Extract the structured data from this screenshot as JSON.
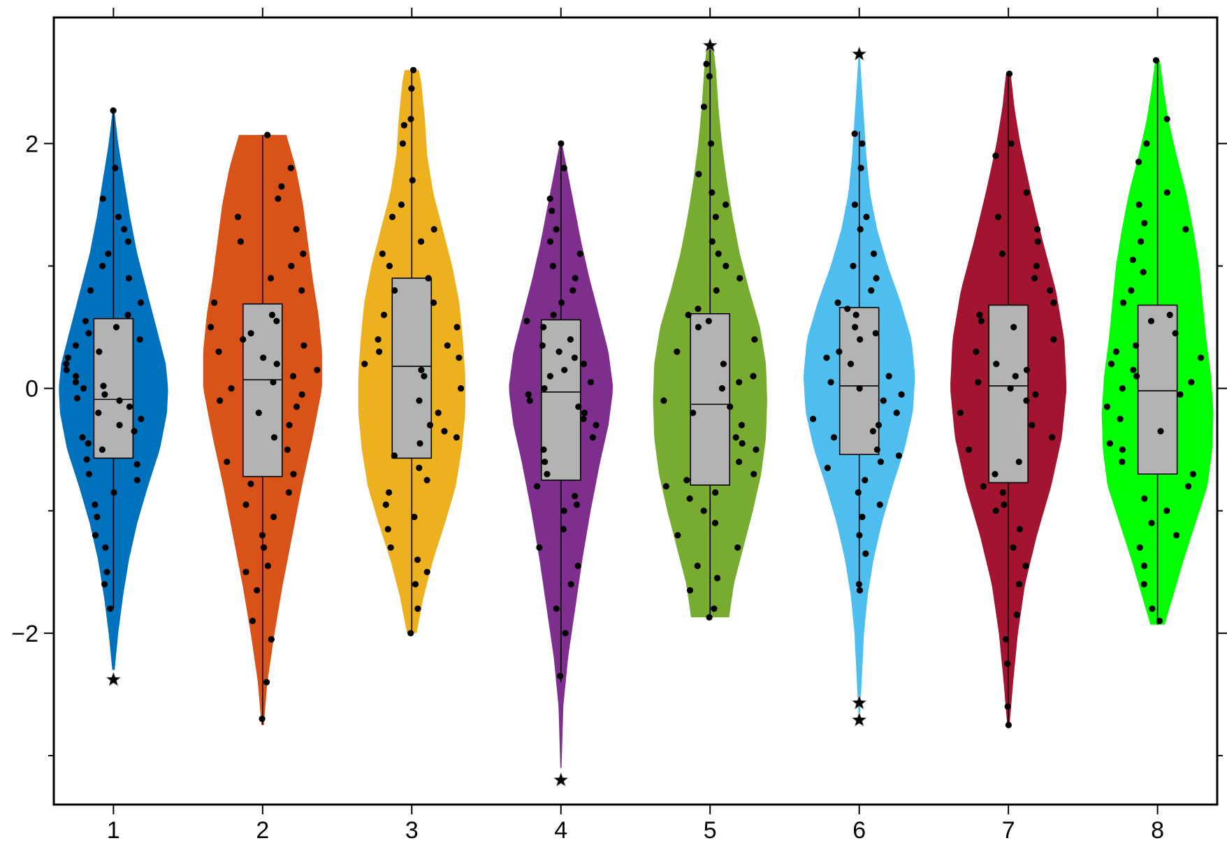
{
  "chart_data": {
    "type": "violin",
    "title": "",
    "xlabel": "",
    "ylabel": "",
    "categories": [
      "1",
      "2",
      "3",
      "4",
      "5",
      "6",
      "7",
      "8"
    ],
    "x_ticks": [
      "1",
      "2",
      "3",
      "4",
      "5",
      "6",
      "7",
      "8"
    ],
    "y_ticks": [
      {
        "value": -2,
        "label": "−2"
      },
      {
        "value": 0,
        "label": "0"
      },
      {
        "value": 2,
        "label": "2"
      }
    ],
    "y_minor_ticks": [
      -3,
      -1,
      1
    ],
    "xlim": [
      0.6,
      8.4
    ],
    "ylim": [
      -3.4,
      3.03
    ],
    "grid": false,
    "legend": "none",
    "colors": [
      "#0072BD",
      "#D95319",
      "#EDB120",
      "#7E2F8E",
      "#77AC30",
      "#4DBEEE",
      "#A2142F",
      "#00FF00"
    ],
    "box_color": "#B3B3B3",
    "point_color": "#000000",
    "series": [
      {
        "category": "1",
        "color": "#0072BD",
        "box": {
          "q1": -0.57,
          "median": -0.09,
          "q3": 0.57,
          "whisker_low": -1.8,
          "whisker_high": 2.27
        },
        "outliers": [
          -2.38
        ],
        "density": {
          "y": [
            -2.3,
            -2.0,
            -1.7,
            -1.4,
            -1.1,
            -0.8,
            -0.5,
            -0.2,
            0.0,
            0.2,
            0.5,
            0.8,
            1.1,
            1.4,
            1.7,
            2.0,
            2.25
          ],
          "w": [
            0.01,
            0.04,
            0.08,
            0.13,
            0.2,
            0.29,
            0.39,
            0.45,
            0.46,
            0.44,
            0.36,
            0.28,
            0.2,
            0.14,
            0.09,
            0.04,
            0.01
          ]
        },
        "points": [
          -1.8,
          -1.6,
          -1.5,
          -1.3,
          -1.2,
          -1.05,
          -0.95,
          -0.85,
          -0.75,
          -0.7,
          -0.62,
          -0.58,
          -0.5,
          -0.45,
          -0.4,
          -0.35,
          -0.3,
          -0.25,
          -0.2,
          -0.15,
          -0.1,
          -0.08,
          -0.05,
          0.0,
          0.02,
          0.05,
          0.1,
          0.15,
          0.2,
          0.25,
          0.3,
          0.35,
          0.4,
          0.45,
          0.5,
          0.55,
          0.6,
          0.7,
          0.8,
          0.9,
          1.0,
          1.1,
          1.2,
          1.3,
          1.4,
          1.55,
          1.8,
          2.27
        ]
      },
      {
        "category": "2",
        "color": "#D95319",
        "box": {
          "q1": -0.72,
          "median": 0.07,
          "q3": 0.69,
          "whisker_low": -2.75,
          "whisker_high": 2.07
        },
        "outliers": [],
        "density": {
          "y": [
            -2.75,
            -2.4,
            -2.0,
            -1.6,
            -1.2,
            -0.8,
            -0.4,
            0.0,
            0.3,
            0.6,
            0.9,
            1.2,
            1.5,
            1.8,
            2.07
          ],
          "w": [
            0.01,
            0.04,
            0.1,
            0.17,
            0.25,
            0.33,
            0.42,
            0.5,
            0.5,
            0.47,
            0.42,
            0.38,
            0.34,
            0.28,
            0.2
          ]
        },
        "points": [
          -2.7,
          -2.4,
          -2.05,
          -1.9,
          -1.65,
          -1.5,
          -1.45,
          -1.3,
          -1.2,
          -1.05,
          -0.95,
          -0.85,
          -0.78,
          -0.7,
          -0.6,
          -0.5,
          -0.4,
          -0.3,
          -0.2,
          -0.15,
          -0.1,
          -0.05,
          0.0,
          0.05,
          0.1,
          0.15,
          0.2,
          0.25,
          0.3,
          0.35,
          0.4,
          0.45,
          0.5,
          0.55,
          0.6,
          0.7,
          0.8,
          0.9,
          1.0,
          1.1,
          1.2,
          1.3,
          1.4,
          1.55,
          1.65,
          1.8,
          2.07
        ]
      },
      {
        "category": "3",
        "color": "#EDB120",
        "box": {
          "q1": -0.57,
          "median": 0.18,
          "q3": 0.9,
          "whisker_low": -2.0,
          "whisker_high": 2.6
        },
        "outliers": [],
        "density": {
          "y": [
            -2.0,
            -1.7,
            -1.4,
            -1.1,
            -0.8,
            -0.5,
            -0.2,
            0.1,
            0.4,
            0.7,
            1.0,
            1.3,
            1.6,
            1.9,
            2.2,
            2.5,
            2.6
          ],
          "w": [
            0.04,
            0.1,
            0.18,
            0.28,
            0.37,
            0.42,
            0.45,
            0.45,
            0.43,
            0.4,
            0.34,
            0.26,
            0.18,
            0.13,
            0.11,
            0.08,
            0.06
          ]
        },
        "points": [
          -2.0,
          -1.8,
          -1.6,
          -1.5,
          -1.4,
          -1.3,
          -1.15,
          -1.05,
          -0.95,
          -0.85,
          -0.75,
          -0.65,
          -0.55,
          -0.45,
          -0.4,
          -0.35,
          -0.3,
          -0.2,
          -0.1,
          0.0,
          0.1,
          0.15,
          0.2,
          0.25,
          0.3,
          0.35,
          0.4,
          0.5,
          0.6,
          0.7,
          0.8,
          0.9,
          1.0,
          1.1,
          1.2,
          1.3,
          1.4,
          1.5,
          1.7,
          2.0,
          2.15,
          2.2,
          2.45,
          2.6
        ]
      },
      {
        "category": "4",
        "color": "#7E2F8E",
        "box": {
          "q1": -0.75,
          "median": -0.03,
          "q3": 0.56,
          "whisker_low": -2.4,
          "whisker_high": 2.0
        },
        "outliers": [
          -3.2
        ],
        "density": {
          "y": [
            -3.1,
            -2.6,
            -2.2,
            -1.8,
            -1.4,
            -1.0,
            -0.6,
            -0.3,
            0.0,
            0.3,
            0.6,
            0.9,
            1.2,
            1.5,
            1.8,
            2.0
          ],
          "w": [
            0.005,
            0.02,
            0.06,
            0.12,
            0.18,
            0.25,
            0.33,
            0.4,
            0.44,
            0.4,
            0.32,
            0.24,
            0.17,
            0.11,
            0.05,
            0.01
          ]
        },
        "points": [
          -2.35,
          -2.0,
          -1.8,
          -1.6,
          -1.45,
          -1.3,
          -1.15,
          -1.0,
          -0.95,
          -0.88,
          -0.8,
          -0.7,
          -0.6,
          -0.5,
          -0.4,
          -0.3,
          -0.25,
          -0.2,
          -0.15,
          -0.1,
          -0.05,
          0.0,
          0.05,
          0.1,
          0.15,
          0.2,
          0.25,
          0.3,
          0.35,
          0.4,
          0.5,
          0.55,
          0.6,
          0.7,
          0.8,
          0.9,
          1.0,
          1.1,
          1.2,
          1.3,
          1.45,
          1.55,
          1.8,
          2.0
        ]
      },
      {
        "category": "5",
        "color": "#77AC30",
        "box": {
          "q1": -0.79,
          "median": -0.13,
          "q3": 0.61,
          "whisker_low": -1.87,
          "whisker_high": 2.77
        },
        "outliers": [
          2.8
        ],
        "density": {
          "y": [
            -1.87,
            -1.6,
            -1.3,
            -1.0,
            -0.7,
            -0.4,
            -0.1,
            0.2,
            0.5,
            0.8,
            1.1,
            1.4,
            1.7,
            2.0,
            2.3,
            2.6,
            2.77
          ],
          "w": [
            0.16,
            0.2,
            0.28,
            0.36,
            0.43,
            0.47,
            0.48,
            0.47,
            0.42,
            0.33,
            0.25,
            0.19,
            0.14,
            0.1,
            0.07,
            0.05,
            0.03
          ]
        },
        "points": [
          -1.87,
          -1.8,
          -1.65,
          -1.55,
          -1.45,
          -1.3,
          -1.2,
          -1.1,
          -1.0,
          -0.9,
          -0.85,
          -0.8,
          -0.75,
          -0.7,
          -0.6,
          -0.5,
          -0.45,
          -0.4,
          -0.3,
          -0.2,
          -0.15,
          -0.1,
          0.0,
          0.05,
          0.1,
          0.2,
          0.3,
          0.4,
          0.5,
          0.55,
          0.6,
          0.65,
          0.8,
          0.9,
          1.0,
          1.1,
          1.2,
          1.4,
          1.5,
          1.6,
          1.75,
          2.0,
          2.3,
          2.55,
          2.65
        ]
      },
      {
        "category": "6",
        "color": "#4DBEEE",
        "box": {
          "q1": -0.54,
          "median": 0.02,
          "q3": 0.66,
          "whisker_low": -1.65,
          "whisker_high": 2.1
        },
        "outliers": [
          2.73,
          -2.57,
          -2.71
        ],
        "density": {
          "y": [
            -2.7,
            -2.4,
            -2.0,
            -1.7,
            -1.4,
            -1.1,
            -0.8,
            -0.5,
            -0.2,
            0.1,
            0.4,
            0.7,
            1.0,
            1.3,
            1.6,
            1.9,
            2.2,
            2.5,
            2.73
          ],
          "w": [
            0.005,
            0.02,
            0.04,
            0.07,
            0.12,
            0.19,
            0.28,
            0.38,
            0.45,
            0.47,
            0.44,
            0.35,
            0.24,
            0.15,
            0.09,
            0.06,
            0.04,
            0.02,
            0.005
          ]
        },
        "points": [
          -1.65,
          -1.6,
          -1.35,
          -1.2,
          -1.05,
          -0.95,
          -0.85,
          -0.75,
          -0.65,
          -0.6,
          -0.55,
          -0.5,
          -0.4,
          -0.35,
          -0.3,
          -0.25,
          -0.2,
          -0.1,
          -0.05,
          0.0,
          0.05,
          0.1,
          0.2,
          0.25,
          0.3,
          0.4,
          0.45,
          0.5,
          0.6,
          0.65,
          0.7,
          0.8,
          0.9,
          1.0,
          1.1,
          1.3,
          1.4,
          1.5,
          1.8,
          2.0,
          2.08
        ]
      },
      {
        "category": "7",
        "color": "#A2142F",
        "box": {
          "q1": -0.77,
          "median": 0.02,
          "q3": 0.68,
          "whisker_low": -2.75,
          "whisker_high": 2.57
        },
        "outliers": [],
        "density": {
          "y": [
            -2.75,
            -2.4,
            -2.0,
            -1.6,
            -1.2,
            -0.8,
            -0.4,
            0.0,
            0.4,
            0.8,
            1.2,
            1.6,
            2.0,
            2.3,
            2.57
          ],
          "w": [
            0.01,
            0.04,
            0.08,
            0.14,
            0.24,
            0.36,
            0.45,
            0.49,
            0.47,
            0.4,
            0.29,
            0.19,
            0.1,
            0.05,
            0.02
          ]
        },
        "points": [
          -2.75,
          -2.6,
          -2.25,
          -2.05,
          -1.85,
          -1.6,
          -1.45,
          -1.3,
          -1.15,
          -1.0,
          -0.95,
          -0.85,
          -0.8,
          -0.7,
          -0.6,
          -0.5,
          -0.4,
          -0.3,
          -0.2,
          -0.1,
          -0.05,
          0.0,
          0.05,
          0.1,
          0.15,
          0.2,
          0.3,
          0.4,
          0.5,
          0.55,
          0.6,
          0.7,
          0.8,
          0.9,
          1.0,
          1.1,
          1.2,
          1.3,
          1.4,
          1.6,
          1.9,
          2.0,
          2.57
        ]
      },
      {
        "category": "8",
        "color": "#00FF00",
        "box": {
          "q1": -0.7,
          "median": -0.02,
          "q3": 0.68,
          "whisker_low": -1.93,
          "whisker_high": 2.68
        },
        "outliers": [],
        "density": {
          "y": [
            -1.93,
            -1.7,
            -1.4,
            -1.1,
            -0.8,
            -0.5,
            -0.2,
            0.1,
            0.4,
            0.7,
            1.0,
            1.3,
            1.6,
            1.9,
            2.2,
            2.45,
            2.68
          ],
          "w": [
            0.06,
            0.13,
            0.22,
            0.32,
            0.42,
            0.46,
            0.47,
            0.45,
            0.41,
            0.38,
            0.35,
            0.3,
            0.24,
            0.16,
            0.09,
            0.05,
            0.02
          ]
        },
        "points": [
          -1.9,
          -1.8,
          -1.6,
          -1.45,
          -1.3,
          -1.2,
          -1.1,
          -1.0,
          -0.9,
          -0.8,
          -0.7,
          -0.6,
          -0.5,
          -0.45,
          -0.35,
          -0.25,
          -0.15,
          -0.05,
          0.0,
          0.05,
          0.1,
          0.15,
          0.2,
          0.25,
          0.3,
          0.35,
          0.45,
          0.55,
          0.6,
          0.7,
          0.8,
          0.95,
          1.05,
          1.2,
          1.3,
          1.35,
          1.5,
          1.6,
          1.85,
          2.0,
          2.2,
          2.68
        ]
      }
    ]
  }
}
